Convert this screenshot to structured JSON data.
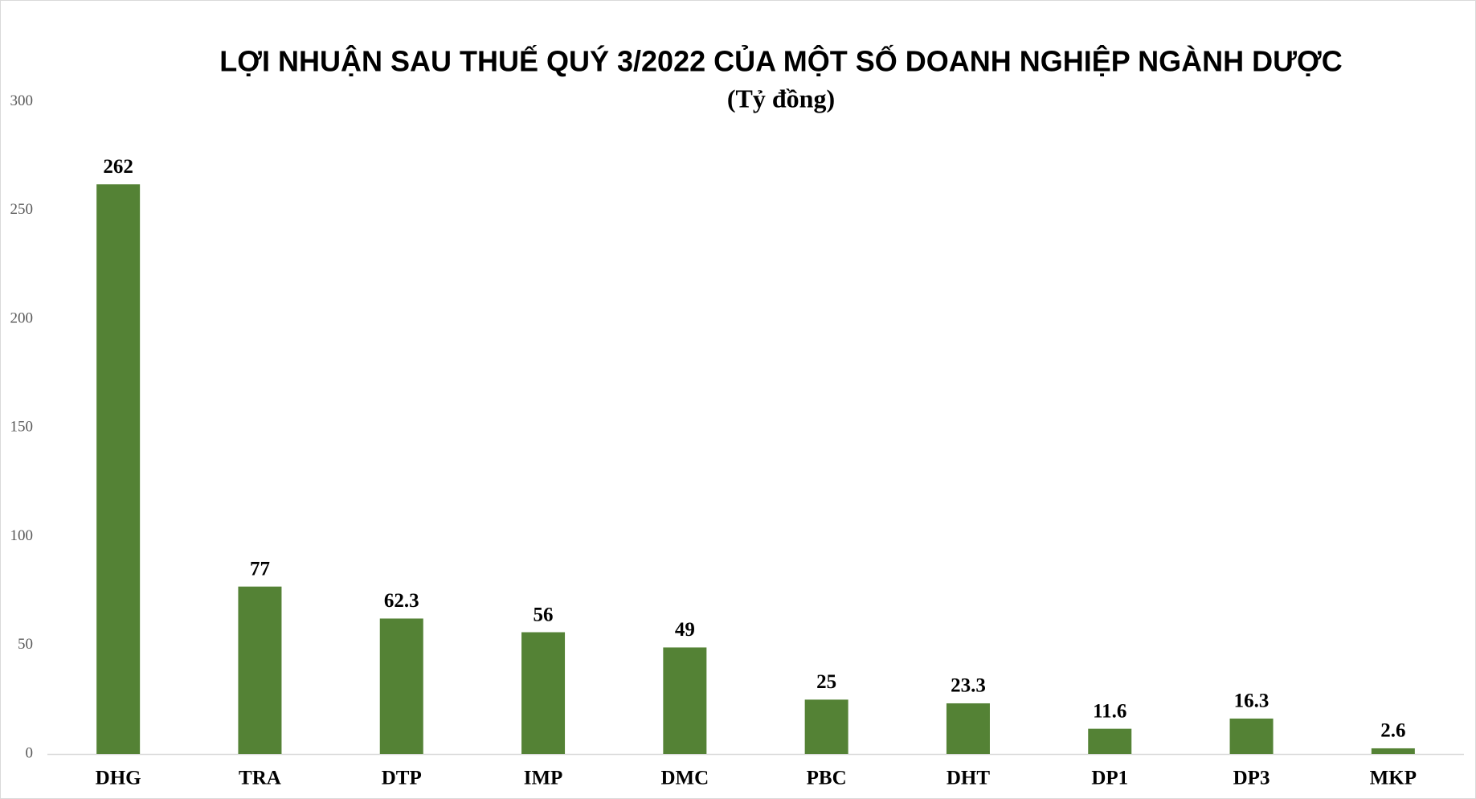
{
  "chart_data": {
    "type": "bar",
    "title": "LỢI NHUẬN SAU THUẾ QUÝ 3/2022 CỦA MỘT SỐ DOANH NGHIỆP NGÀNH DƯỢC",
    "subtitle": "(Tỷ đồng)",
    "categories": [
      "DHG",
      "TRA",
      "DTP",
      "IMP",
      "DMC",
      "PBC",
      "DHT",
      "DP1",
      "DP3",
      "MKP"
    ],
    "values": [
      262,
      77,
      62.3,
      56,
      49,
      25,
      23.3,
      11.6,
      16.3,
      2.6
    ],
    "color": "#548235",
    "ylim": [
      0,
      300
    ],
    "yticks": [
      0,
      50,
      100,
      150,
      200,
      250,
      300
    ],
    "grid": false
  }
}
